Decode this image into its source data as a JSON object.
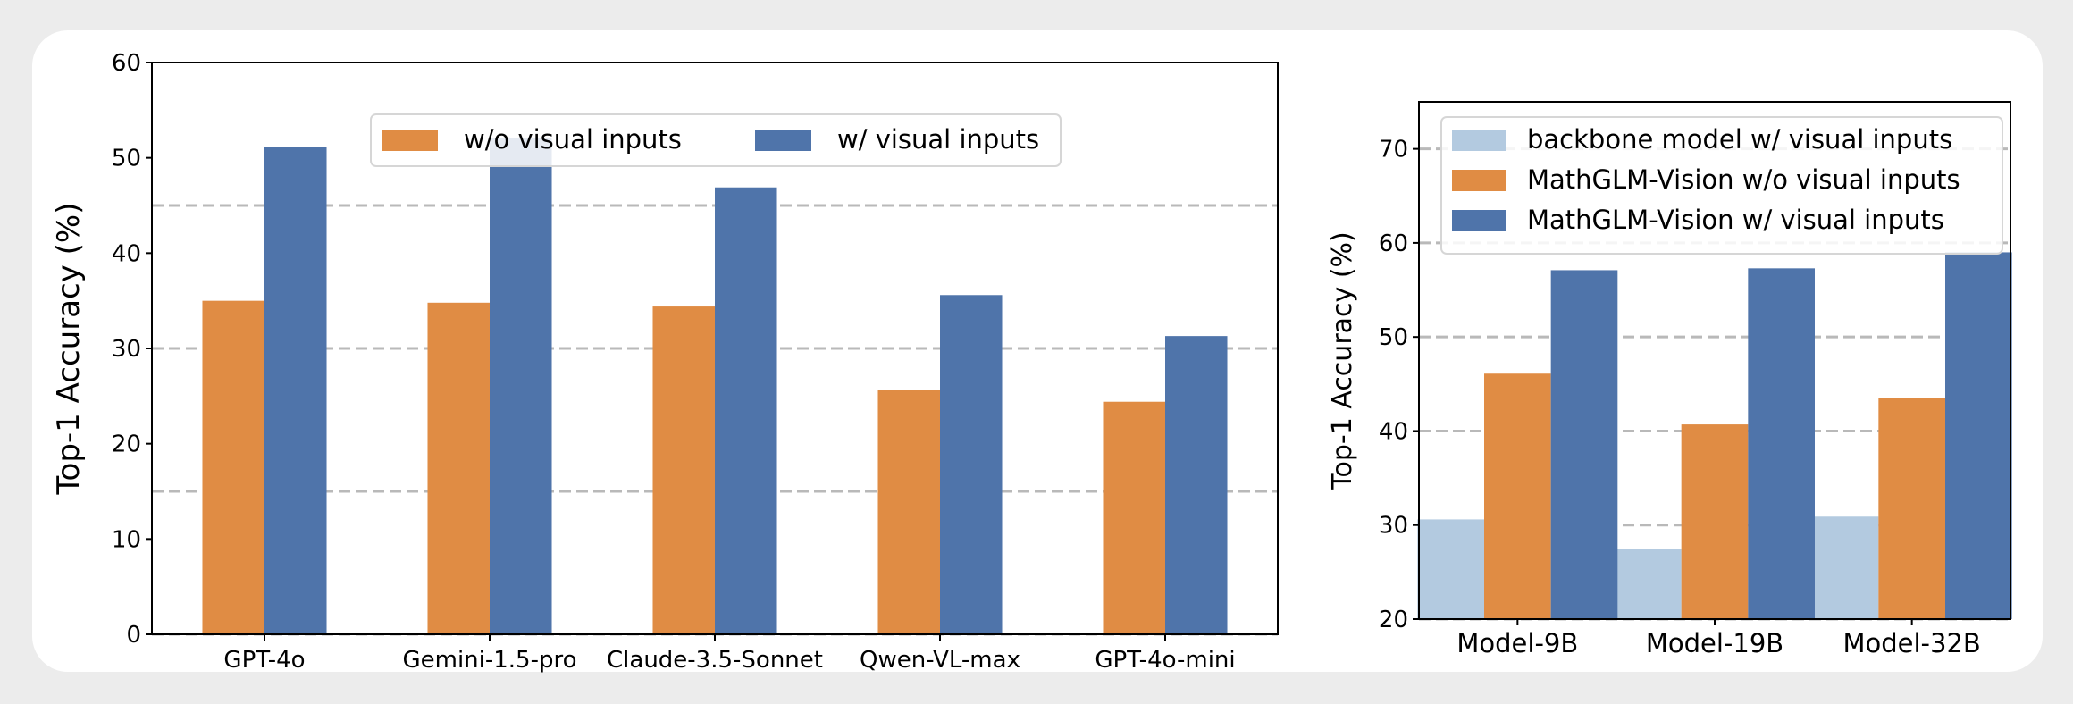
{
  "chart_data": [
    {
      "type": "bar",
      "title": "",
      "xlabel": "",
      "ylabel": "Top-1 Accuracy (%)",
      "ylim": [
        0,
        60
      ],
      "yticks": [
        0,
        10,
        20,
        30,
        40,
        50,
        60
      ],
      "gridlines": [
        0,
        15,
        30,
        45
      ],
      "grid": "dashed horizontal",
      "legend_position": "top-center",
      "categories": [
        "GPT-4o",
        "Gemini-1.5-pro",
        "Claude-3.5-Sonnet",
        "Qwen-VL-max",
        "GPT-4o-mini"
      ],
      "series": [
        {
          "name": "w/o visual inputs",
          "color": "#e08c44",
          "values": [
            35.0,
            34.8,
            34.4,
            25.6,
            24.4
          ]
        },
        {
          "name": "w/ visual inputs",
          "color": "#4f74aa",
          "values": [
            51.1,
            52.1,
            46.9,
            35.6,
            31.3
          ]
        }
      ]
    },
    {
      "type": "bar",
      "title": "",
      "xlabel": "",
      "ylabel": "Top-1 Accuracy (%)",
      "ylim": [
        20,
        75
      ],
      "yticks": [
        20,
        30,
        40,
        50,
        60,
        70
      ],
      "gridlines": [
        20,
        30,
        40,
        50,
        60,
        70
      ],
      "grid": "dashed horizontal",
      "legend_position": "top-right",
      "categories": [
        "Model-9B",
        "Model-19B",
        "Model-32B"
      ],
      "series": [
        {
          "name": "backbone model w/ visual inputs",
          "color": "#b3cae0",
          "values": [
            30.6,
            27.5,
            30.9
          ]
        },
        {
          "name": "MathGLM-Vision w/o visual inputs",
          "color": "#e08c44",
          "values": [
            46.1,
            40.7,
            43.5
          ]
        },
        {
          "name": "MathGLM-Vision w/ visual inputs",
          "color": "#4f74aa",
          "values": [
            57.1,
            57.3,
            59.0
          ]
        }
      ]
    }
  ]
}
